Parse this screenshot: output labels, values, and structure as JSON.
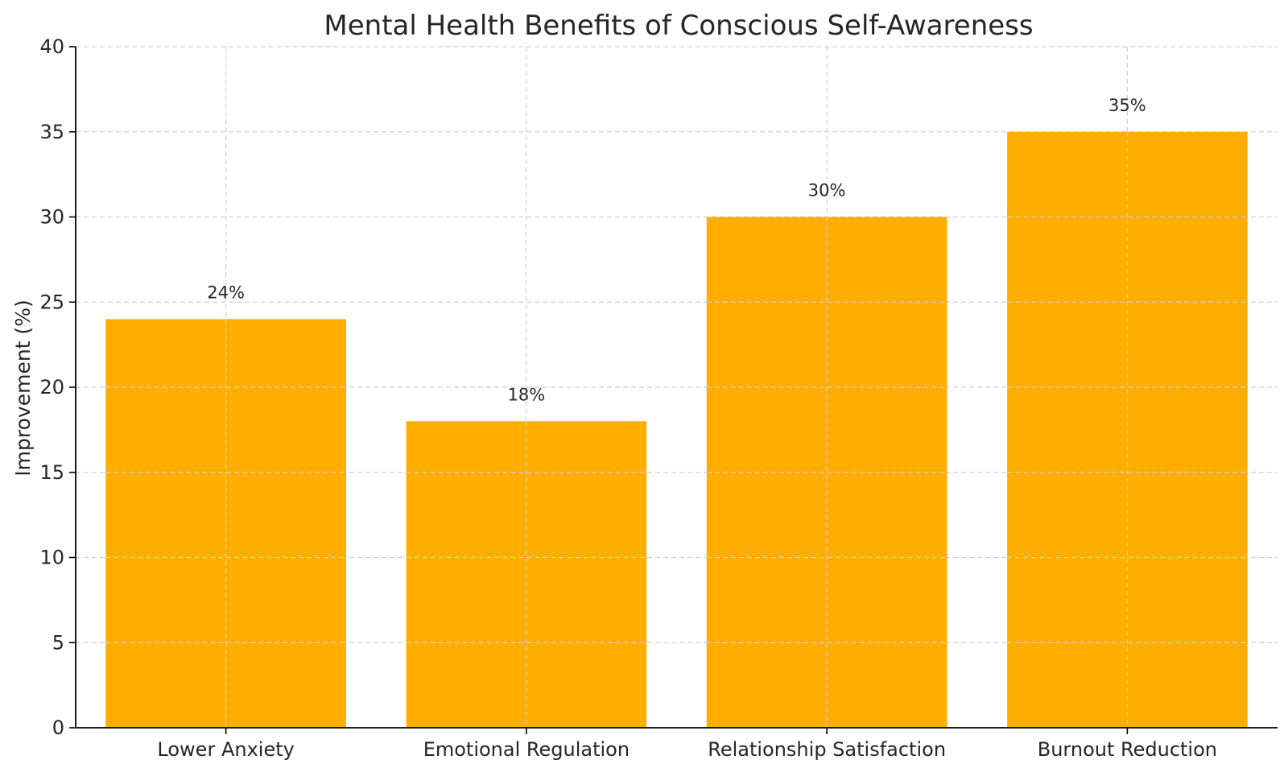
{
  "chart_data": {
    "type": "bar",
    "title": "Mental Health Benefits of Conscious Self-Awareness",
    "xlabel": "",
    "ylabel": "Improvement (%)",
    "categories": [
      "Lower Anxiety",
      "Emotional Regulation",
      "Relationship Satisfaction",
      "Burnout Reduction"
    ],
    "values": [
      24,
      18,
      30,
      35
    ],
    "value_labels": [
      "24%",
      "18%",
      "30%",
      "35%"
    ],
    "ylim": [
      0,
      40
    ],
    "yticks": [
      0,
      5,
      10,
      15,
      20,
      25,
      30,
      35,
      40
    ],
    "ytick_labels": [
      "0",
      "5",
      "10",
      "15",
      "20",
      "25",
      "30",
      "35",
      "40"
    ],
    "grid": true,
    "legend": "none",
    "bar_color": "#FFAE00"
  }
}
